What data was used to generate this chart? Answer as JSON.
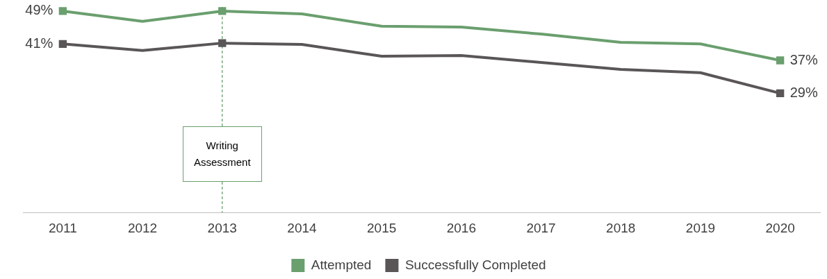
{
  "chart_data": {
    "type": "line",
    "categories": [
      "2011",
      "2012",
      "2013",
      "2014",
      "2015",
      "2016",
      "2017",
      "2018",
      "2019",
      "2020"
    ],
    "series": [
      {
        "name": "Attempted",
        "color": "#6a9f6e",
        "values": [
          49,
          46.5,
          49,
          48.3,
          45.3,
          45.1,
          43.4,
          41.4,
          41,
          37
        ],
        "value_labels": [
          "49%",
          null,
          null,
          null,
          null,
          null,
          null,
          null,
          null,
          "37%"
        ]
      },
      {
        "name": "Successfully Completed",
        "color": "#5a5658",
        "values": [
          41,
          39.4,
          41.2,
          40.9,
          38,
          38.2,
          36.5,
          34.8,
          34,
          29
        ],
        "value_labels": [
          "41%",
          null,
          null,
          null,
          null,
          null,
          null,
          null,
          null,
          "29%"
        ]
      }
    ],
    "tick_labels": "x",
    "grid": false,
    "legend": "bottom",
    "line_style": "solid",
    "ref_lines": [
      {
        "axis": "x",
        "value": "2013",
        "label": "Writing Assessment",
        "color": "#6a9f6e",
        "line_style": "dashed"
      }
    ]
  }
}
